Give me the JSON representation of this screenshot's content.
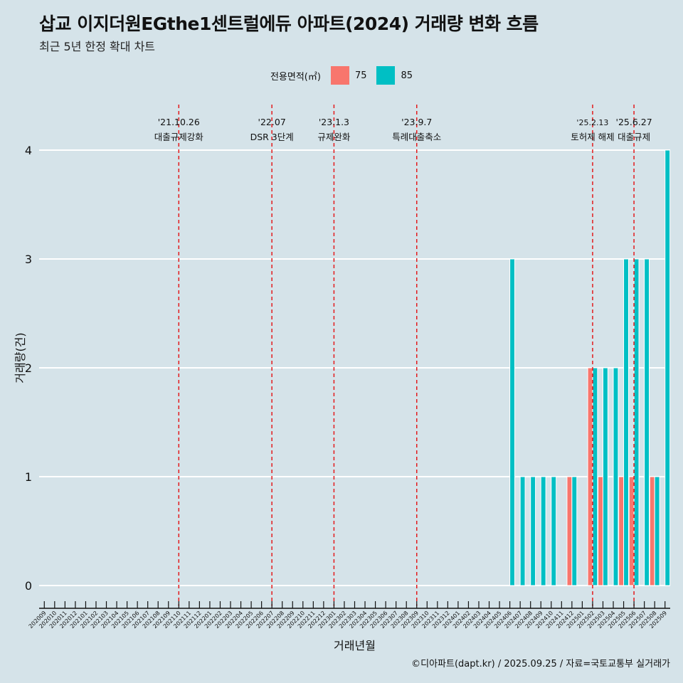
{
  "chart_data": {
    "type": "bar",
    "title": "삽교 이지더원EGthe1센트럴에듀 아파트(2024) 거래량 변화 흐름",
    "subtitle": "최근 5년 한정 확대 차트",
    "xlabel": "거래년월",
    "ylabel": "거래량(건)",
    "ylim": [
      0,
      4
    ],
    "yticks": [
      0,
      1,
      2,
      3,
      4
    ],
    "legend_title": "전용면적(㎡)",
    "legend_position": "top",
    "colors": {
      "75": "#f8766d",
      "85": "#00bfc4",
      "event_line": "#e31a1c",
      "grid": "#ffffff"
    },
    "categories": [
      "202009",
      "202010",
      "202011",
      "202012",
      "202101",
      "202102",
      "202103",
      "202104",
      "202105",
      "202106",
      "202107",
      "202108",
      "202109",
      "202110",
      "202111",
      "202112",
      "202201",
      "202202",
      "202203",
      "202204",
      "202205",
      "202206",
      "202207",
      "202208",
      "202209",
      "202210",
      "202211",
      "202212",
      "202301",
      "202302",
      "202303",
      "202304",
      "202305",
      "202306",
      "202307",
      "202308",
      "202309",
      "202310",
      "202311",
      "202312",
      "202401",
      "202402",
      "202403",
      "202404",
      "202405",
      "202406",
      "202407",
      "202408",
      "202409",
      "202410",
      "202411",
      "202412",
      "202501",
      "202502",
      "202503",
      "202504",
      "202505",
      "202506",
      "202507",
      "202508",
      "202509"
    ],
    "series": [
      {
        "name": "75",
        "values": [
          0,
          0,
          0,
          0,
          0,
          0,
          0,
          0,
          0,
          0,
          0,
          0,
          0,
          0,
          0,
          0,
          0,
          0,
          0,
          0,
          0,
          0,
          0,
          0,
          0,
          0,
          0,
          0,
          0,
          0,
          0,
          0,
          0,
          0,
          0,
          0,
          0,
          0,
          0,
          0,
          0,
          0,
          0,
          0,
          0,
          0,
          0,
          0,
          0,
          0,
          0,
          1,
          0,
          2,
          1,
          0,
          1,
          1,
          0,
          1,
          0
        ]
      },
      {
        "name": "85",
        "values": [
          0,
          0,
          0,
          0,
          0,
          0,
          0,
          0,
          0,
          0,
          0,
          0,
          0,
          0,
          0,
          0,
          0,
          0,
          0,
          0,
          0,
          0,
          0,
          0,
          0,
          0,
          0,
          0,
          0,
          0,
          0,
          0,
          0,
          0,
          0,
          0,
          0,
          0,
          0,
          0,
          0,
          0,
          0,
          0,
          0,
          3,
          1,
          1,
          1,
          1,
          0,
          1,
          0,
          2,
          2,
          2,
          3,
          3,
          3,
          1,
          4
        ]
      }
    ],
    "events": [
      {
        "month": "202110",
        "date": "'21.10.26",
        "label": "대출규제강화"
      },
      {
        "month": "202207",
        "date": "'22.07",
        "label": "DSR 3단계"
      },
      {
        "month": "202301",
        "date": "'23.1.3",
        "label": "규제완화"
      },
      {
        "month": "202309",
        "date": "'23.9.7",
        "label": "특례대출축소"
      },
      {
        "month": "202502",
        "date": "'25.2.13",
        "label": "토허제 해제"
      },
      {
        "month": "202506",
        "date": "'25.6.27",
        "label": "대출규제"
      }
    ]
  },
  "caption": "©디아파트(dapt.kr) / 2025.09.25 / 자료=국토교통부 실거래가"
}
